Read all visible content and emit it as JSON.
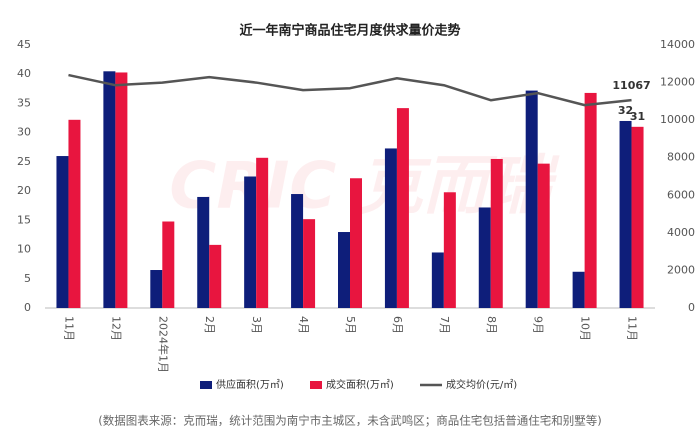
{
  "chart_data": {
    "type": "bar_line",
    "title": "近一年南宁商品住宅月度供求量价走势",
    "watermark": "CRIC 克而瑞",
    "source": "(数据图表来源：克而瑞，统计范围为南宁市主城区，未含武鸣区；商品住宅包括普通住宅和别墅等)",
    "categories": [
      "11月",
      "12月",
      "2024年1月",
      "2月",
      "3月",
      "4月",
      "5月",
      "6月",
      "7月",
      "8月",
      "9月",
      "10月",
      "11月"
    ],
    "series": [
      {
        "name": "供应面积(万㎡)",
        "type": "bar",
        "color": "#0e1e7a",
        "axis": "y",
        "values": [
          26,
          40.5,
          6.5,
          19,
          22.5,
          19.5,
          13,
          27.3,
          9.5,
          17.2,
          37.2,
          6.2,
          32
        ],
        "value_labels": [
          null,
          null,
          null,
          null,
          null,
          null,
          null,
          null,
          null,
          null,
          null,
          null,
          "32"
        ]
      },
      {
        "name": "成交面积(万㎡)",
        "type": "bar",
        "color": "#e8153f",
        "axis": "y",
        "values": [
          32.2,
          40.3,
          14.8,
          10.8,
          25.7,
          15.2,
          22.2,
          34.2,
          19.8,
          25.5,
          24.7,
          36.8,
          31
        ],
        "value_labels": [
          null,
          null,
          null,
          null,
          null,
          null,
          null,
          null,
          null,
          null,
          null,
          null,
          "31"
        ]
      },
      {
        "name": "成交均价(元/㎡)",
        "type": "line",
        "color": "#555555",
        "axis": "y2",
        "values": [
          12400,
          11860,
          12000,
          12290,
          12000,
          11600,
          11700,
          12230,
          11860,
          11060,
          11440,
          10800,
          11067
        ],
        "value_labels": [
          null,
          null,
          null,
          null,
          null,
          null,
          null,
          null,
          null,
          null,
          null,
          null,
          "11067"
        ]
      }
    ],
    "ylim": [
      0,
      45
    ],
    "yticks": [
      0,
      5,
      10,
      15,
      20,
      25,
      30,
      35,
      40,
      45
    ],
    "y2lim": [
      0,
      14000
    ],
    "y2ticks": [
      0,
      2000,
      4000,
      6000,
      8000,
      10000,
      12000,
      14000
    ]
  }
}
